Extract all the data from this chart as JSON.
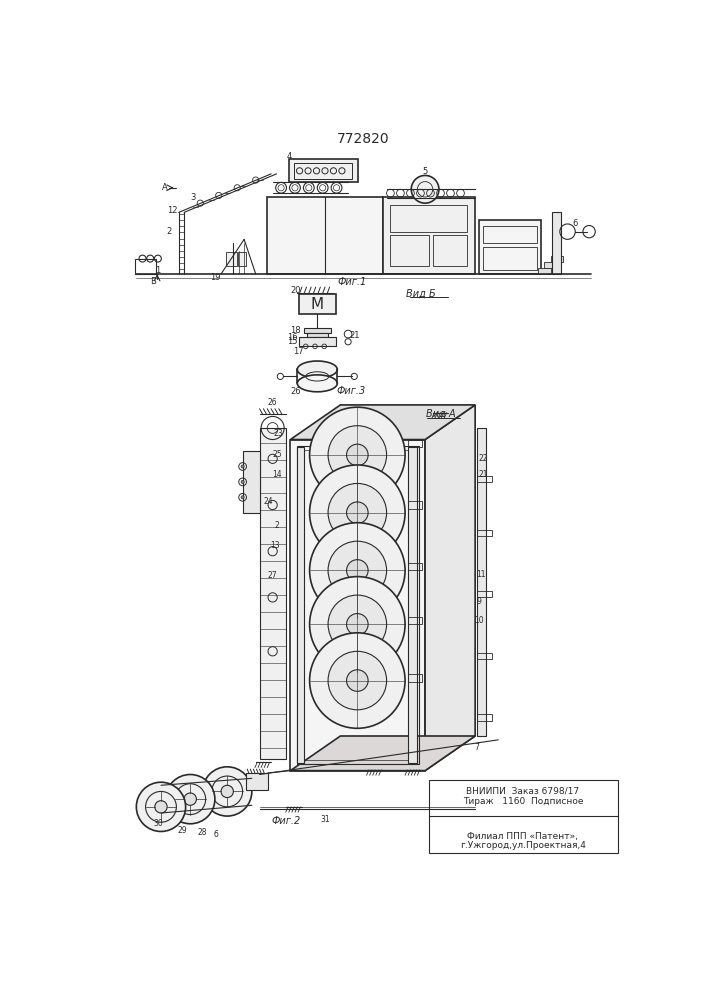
{
  "title": "772820",
  "bg_color": "#ffffff",
  "line_color": "#2a2a2a",
  "bottom_text1": "ВНИИПИ  Заказ 6798/17",
  "bottom_text2": "Тираж   1160  Подписное",
  "bottom_text3": "Филиал ППП «Патент»,",
  "bottom_text4": "г.Ужгород,ул.Проектная,4"
}
